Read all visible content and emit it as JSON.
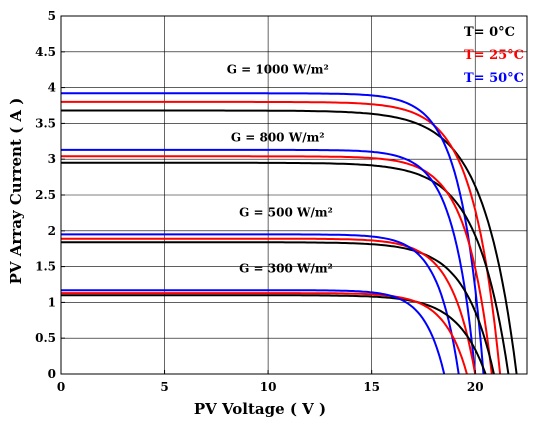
{
  "chart_data": {
    "type": "line",
    "title": "",
    "xlabel": "PV Voltage ( V )",
    "ylabel": "PV Array Current ( A )",
    "xlim": [
      0,
      22.5
    ],
    "ylim": [
      0,
      5
    ],
    "xticks": [
      "0",
      "5",
      "10",
      "15",
      "20"
    ],
    "yticks": [
      "0",
      "0.5",
      "1",
      "1.5",
      "2",
      "2.5",
      "3",
      "3.5",
      "4",
      "4.5",
      "5"
    ],
    "grid": true,
    "legend": {
      "position": "top-right",
      "entries": [
        {
          "label": "T= 0°C",
          "color": "#000000"
        },
        {
          "label": "T= 25°C",
          "color": "#ff0000"
        },
        {
          "label": "T= 50°C",
          "color": "#0000ff"
        }
      ]
    },
    "irradiance_labels": [
      {
        "text": "G = 1000 W/m²",
        "x": 8.0,
        "y": 4.2
      },
      {
        "text": "G = 800 W/m²",
        "x": 8.2,
        "y": 3.25
      },
      {
        "text": "G = 500 W/m²",
        "x": 8.6,
        "y": 2.2
      },
      {
        "text": "G = 300 W/m²",
        "x": 8.6,
        "y": 1.42
      }
    ],
    "series": [
      {
        "irradiance": "1000",
        "temperature": "0",
        "color": "#000000",
        "isc": 3.68,
        "voc": 22.0,
        "k": 1.6
      },
      {
        "irradiance": "1000",
        "temperature": "25",
        "color": "#ff0000",
        "isc": 3.8,
        "voc": 21.2,
        "k": 1.3
      },
      {
        "irradiance": "1000",
        "temperature": "50",
        "color": "#0000ff",
        "isc": 3.92,
        "voc": 20.4,
        "k": 1.1
      },
      {
        "irradiance": "800",
        "temperature": "0",
        "color": "#000000",
        "isc": 2.95,
        "voc": 21.6,
        "k": 1.5
      },
      {
        "irradiance": "800",
        "temperature": "25",
        "color": "#ff0000",
        "isc": 3.04,
        "voc": 20.8,
        "k": 1.2
      },
      {
        "irradiance": "800",
        "temperature": "50",
        "color": "#0000ff",
        "isc": 3.13,
        "voc": 20.0,
        "k": 1.05
      },
      {
        "irradiance": "500",
        "temperature": "0",
        "color": "#000000",
        "isc": 1.84,
        "voc": 20.9,
        "k": 1.4
      },
      {
        "irradiance": "500",
        "temperature": "25",
        "color": "#ff0000",
        "isc": 1.89,
        "voc": 20.0,
        "k": 1.15
      },
      {
        "irradiance": "500",
        "temperature": "50",
        "color": "#0000ff",
        "isc": 1.95,
        "voc": 19.2,
        "k": 1.0
      },
      {
        "irradiance": "300",
        "temperature": "0",
        "color": "#000000",
        "isc": 1.1,
        "voc": 20.5,
        "k": 1.35
      },
      {
        "irradiance": "300",
        "temperature": "25",
        "color": "#ff0000",
        "isc": 1.13,
        "voc": 19.6,
        "k": 1.1
      },
      {
        "irradiance": "300",
        "temperature": "50",
        "color": "#0000ff",
        "isc": 1.17,
        "voc": 18.5,
        "k": 0.95
      }
    ]
  }
}
